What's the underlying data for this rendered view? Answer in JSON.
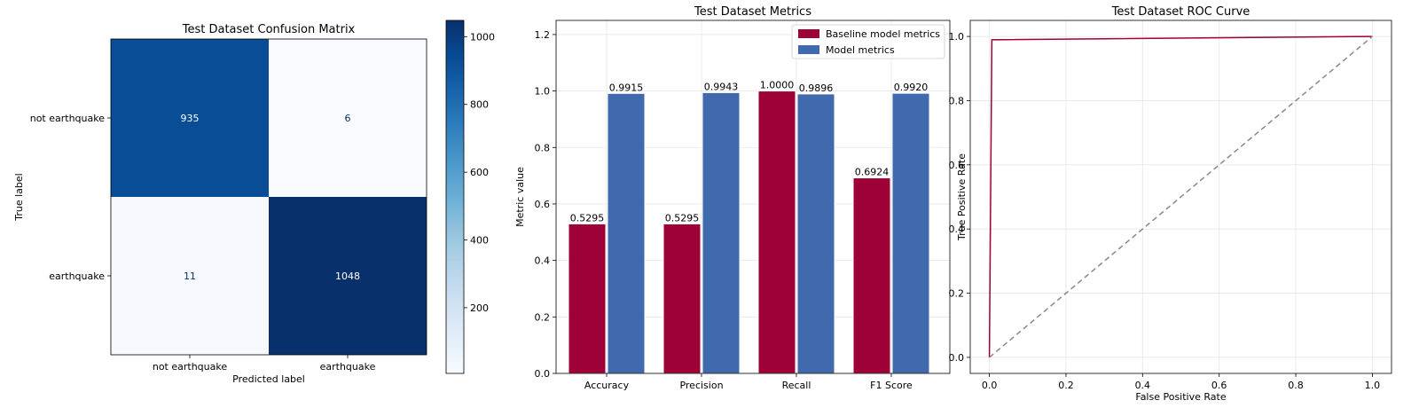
{
  "chart_data": [
    {
      "type": "heatmap",
      "title": "Test Dataset Confusion Matrix",
      "xlabel": "Predicted label",
      "ylabel": "True label",
      "x_categories": [
        "not earthquake",
        "earthquake"
      ],
      "y_categories": [
        "not earthquake",
        "earthquake"
      ],
      "values": [
        [
          935,
          6
        ],
        [
          11,
          1048
        ]
      ],
      "colorbar": {
        "ticks": [
          "200",
          "400",
          "600",
          "800",
          "1000"
        ],
        "range": [
          6,
          1048
        ],
        "colormap": "Blues"
      }
    },
    {
      "type": "bar",
      "title": "Test Dataset Metrics",
      "xlabel": "",
      "ylabel": "Metric value",
      "categories": [
        "Accuracy",
        "Precision",
        "Recall",
        "F1 Score"
      ],
      "ylim": [
        0,
        1.25
      ],
      "yticks": [
        "0.0",
        "0.2",
        "0.4",
        "0.6",
        "0.8",
        "1.0",
        "1.2"
      ],
      "grid": true,
      "legend_position": "top-right",
      "series": [
        {
          "name": "Baseline model metrics",
          "color": "#9e0038",
          "values": [
            0.5295,
            0.5295,
            1.0,
            0.6924
          ],
          "labels": [
            "0.5295",
            "0.5295",
            "1.0000",
            "0.6924"
          ]
        },
        {
          "name": "Model metrics",
          "color": "#4169ad",
          "values": [
            0.9915,
            0.9943,
            0.9896,
            0.992
          ],
          "labels": [
            "0.9915",
            "0.9943",
            "0.9896",
            "0.9920"
          ]
        }
      ]
    },
    {
      "type": "line",
      "title": "Test Dataset ROC Curve",
      "xlabel": "False Positive Rate",
      "ylabel": "True Positive Rate",
      "xlim": [
        -0.05,
        1.05
      ],
      "ylim": [
        -0.05,
        1.05
      ],
      "xticks": [
        "0.0",
        "0.2",
        "0.4",
        "0.6",
        "0.8",
        "1.0"
      ],
      "yticks": [
        "0.0",
        "0.2",
        "0.4",
        "0.6",
        "0.8",
        "1.0"
      ],
      "grid": true,
      "series": [
        {
          "color": "#9e0038",
          "style": "solid",
          "x": [
            0,
            0.0064,
            1
          ],
          "y": [
            0,
            0.9896,
            1
          ]
        },
        {
          "color": "#888888",
          "style": "dashed",
          "x": [
            0,
            1
          ],
          "y": [
            0,
            1
          ]
        }
      ]
    }
  ]
}
